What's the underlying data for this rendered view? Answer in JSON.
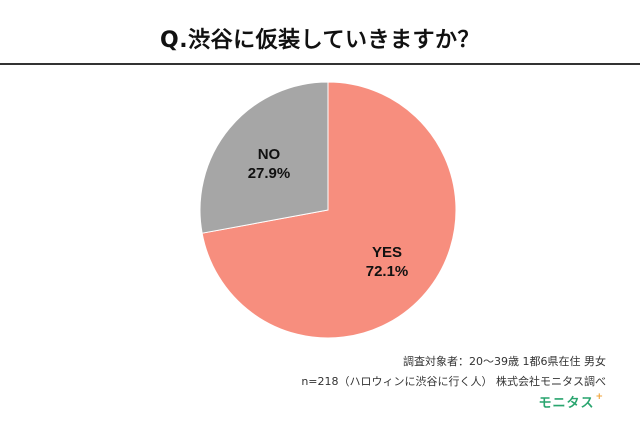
{
  "header": {
    "title": "Q.渋谷に仮装していきますか？"
  },
  "chart_data": {
    "type": "pie",
    "title": "Q.渋谷に仮装していきますか？",
    "slices": [
      {
        "label": "YES",
        "value": 72.1,
        "value_label": "72.1%",
        "color": "#f78e7e"
      },
      {
        "label": "NO",
        "value": 27.9,
        "value_label": "27.9%",
        "color": "#a6a6a6"
      }
    ],
    "start": "12 o'clock",
    "direction": "clockwise",
    "legend": "none"
  },
  "footer": {
    "line1": "調査対象者：20〜39歳 1都6県在住 男女",
    "line2": "n=218（ハロウィンに渋谷に行く人） 株式会社モニタス調べ",
    "logo_text": "モニタス",
    "logo_mark": "+"
  }
}
